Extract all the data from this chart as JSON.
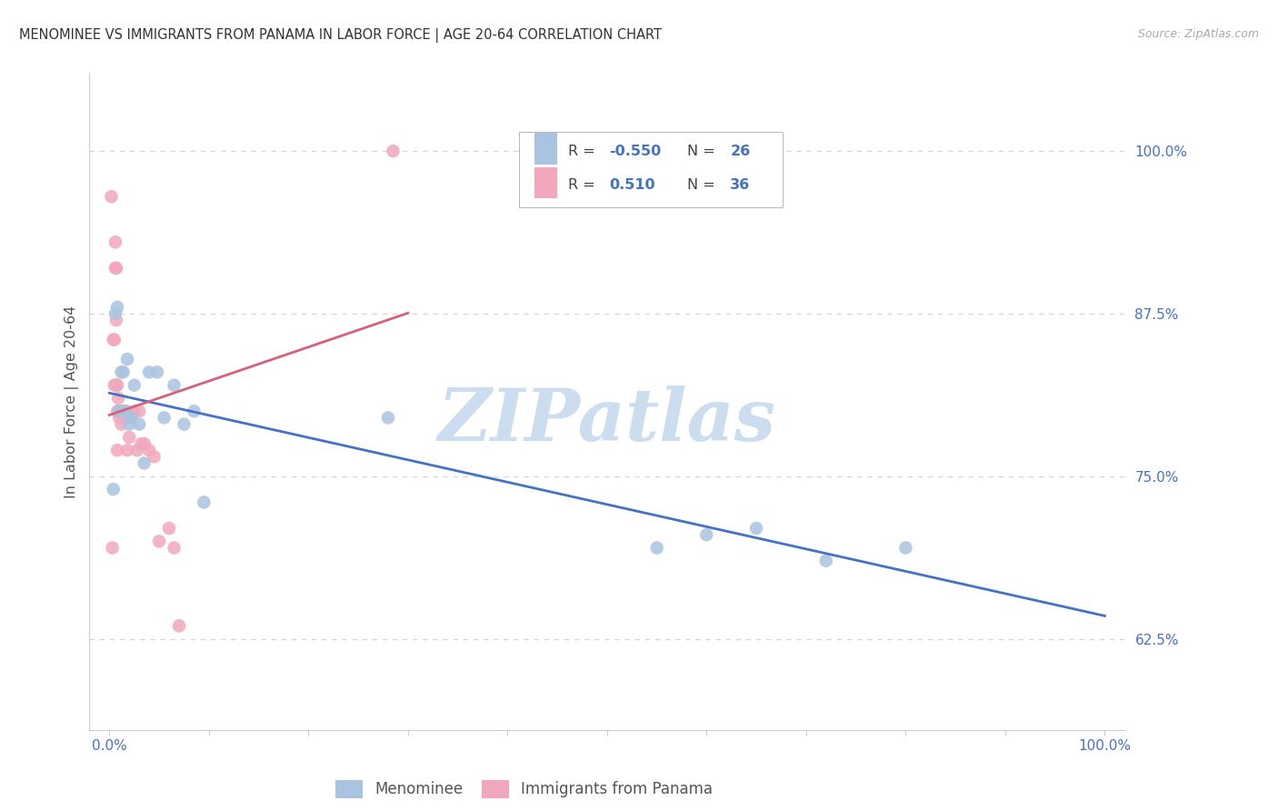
{
  "title": "MENOMINEE VS IMMIGRANTS FROM PANAMA IN LABOR FORCE | AGE 20-64 CORRELATION CHART",
  "source": "Source: ZipAtlas.com",
  "ylabel": "In Labor Force | Age 20-64",
  "xlim": [
    -0.02,
    1.02
  ],
  "ylim": [
    0.555,
    1.06
  ],
  "yticks": [
    0.625,
    0.75,
    0.875,
    1.0
  ],
  "ytick_labels": [
    "62.5%",
    "75.0%",
    "87.5%",
    "100.0%"
  ],
  "xticks": [
    0.0,
    0.1,
    0.2,
    0.3,
    0.4,
    0.5,
    0.6,
    0.7,
    0.8,
    0.9,
    1.0
  ],
  "xtick_labels": [
    "0.0%",
    "",
    "",
    "",
    "",
    "",
    "",
    "",
    "",
    "",
    "100.0%"
  ],
  "background_color": "#ffffff",
  "grid_color": "#d8d8d8",
  "menominee_color": "#a8c4e0",
  "panama_color": "#f2a8bc",
  "menominee_line_color": "#4472c4",
  "panama_line_color": "#d9607a",
  "R_menominee": -0.55,
  "N_menominee": 26,
  "R_panama": 0.51,
  "N_panama": 36,
  "menominee_x": [
    0.004,
    0.006,
    0.008,
    0.01,
    0.012,
    0.014,
    0.016,
    0.018,
    0.02,
    0.022,
    0.025,
    0.03,
    0.035,
    0.04,
    0.048,
    0.055,
    0.065,
    0.075,
    0.085,
    0.095,
    0.28,
    0.55,
    0.6,
    0.65,
    0.72,
    0.8
  ],
  "menominee_y": [
    0.74,
    0.875,
    0.88,
    0.8,
    0.83,
    0.83,
    0.8,
    0.84,
    0.79,
    0.795,
    0.82,
    0.79,
    0.76,
    0.83,
    0.83,
    0.795,
    0.82,
    0.79,
    0.8,
    0.73,
    0.795,
    0.695,
    0.705,
    0.71,
    0.685,
    0.695
  ],
  "panama_x": [
    0.002,
    0.003,
    0.004,
    0.005,
    0.005,
    0.006,
    0.006,
    0.007,
    0.007,
    0.007,
    0.008,
    0.008,
    0.008,
    0.009,
    0.01,
    0.01,
    0.011,
    0.012,
    0.013,
    0.015,
    0.017,
    0.018,
    0.02,
    0.022,
    0.025,
    0.028,
    0.03,
    0.032,
    0.035,
    0.04,
    0.045,
    0.05,
    0.06,
    0.065,
    0.07,
    0.285
  ],
  "panama_y": [
    0.965,
    0.695,
    0.855,
    0.855,
    0.82,
    0.93,
    0.91,
    0.91,
    0.87,
    0.82,
    0.82,
    0.8,
    0.77,
    0.81,
    0.8,
    0.795,
    0.8,
    0.79,
    0.8,
    0.8,
    0.8,
    0.77,
    0.78,
    0.795,
    0.8,
    0.77,
    0.8,
    0.775,
    0.775,
    0.77,
    0.765,
    0.7,
    0.71,
    0.695,
    0.635,
    1.0
  ],
  "watermark_text": "ZIPatlas",
  "watermark_color": "#ccddf0"
}
